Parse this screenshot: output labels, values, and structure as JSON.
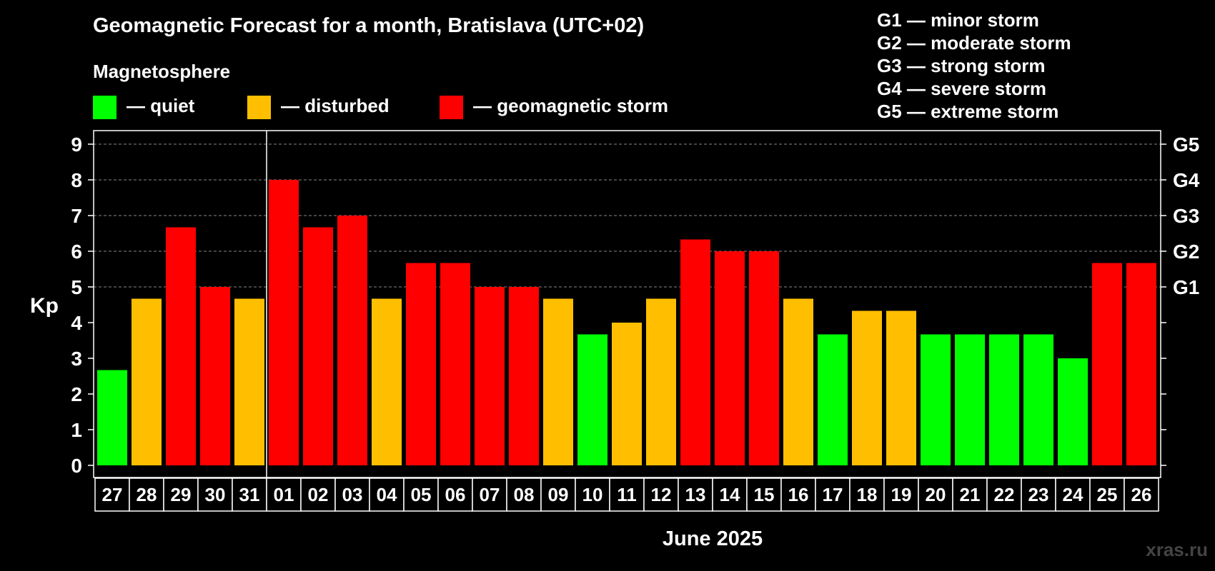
{
  "title": "Geomagnetic Forecast for a month, Bratislava (UTC+02)",
  "legend": {
    "heading": "Magnetosphere",
    "items": [
      {
        "label": "— quiet",
        "color": "#00ff00"
      },
      {
        "label": "— disturbed",
        "color": "#ffbf00"
      },
      {
        "label": "— geomagnetic storm",
        "color": "#ff0000"
      }
    ]
  },
  "storm_scale": [
    "G1 — minor storm",
    "G2 — moderate storm",
    "G3 — strong storm",
    "G4 — severe storm",
    "G5 — extreme storm"
  ],
  "watermark": "xras.ru",
  "chart_data": {
    "type": "bar",
    "title": "Geomagnetic Forecast for a month, Bratislava (UTC+02)",
    "xlabel": "June 2025",
    "ylabel": "Kp",
    "ylim": [
      0,
      9
    ],
    "yticks": [
      0,
      1,
      2,
      3,
      4,
      5,
      6,
      7,
      8,
      9
    ],
    "right_ticks": [
      {
        "value": 5,
        "label": "G1"
      },
      {
        "value": 6,
        "label": "G2"
      },
      {
        "value": 7,
        "label": "G3"
      },
      {
        "value": 8,
        "label": "G4"
      },
      {
        "value": 9,
        "label": "G5"
      }
    ],
    "grid": true,
    "month_divider_after": "31",
    "categories": [
      "27",
      "28",
      "29",
      "30",
      "31",
      "01",
      "02",
      "03",
      "04",
      "05",
      "06",
      "07",
      "08",
      "09",
      "10",
      "11",
      "12",
      "13",
      "14",
      "15",
      "16",
      "17",
      "18",
      "19",
      "20",
      "21",
      "22",
      "23",
      "24",
      "25",
      "26"
    ],
    "values": [
      2.67,
      4.67,
      6.67,
      5.0,
      4.67,
      8.0,
      6.67,
      7.0,
      4.67,
      5.67,
      5.67,
      5.0,
      5.0,
      4.67,
      3.67,
      4.0,
      4.67,
      6.33,
      6.0,
      6.0,
      4.67,
      3.67,
      4.33,
      4.33,
      3.67,
      3.67,
      3.67,
      3.67,
      3.0,
      5.67,
      5.67
    ],
    "levels": [
      "quiet",
      "disturbed",
      "storm",
      "storm",
      "disturbed",
      "storm",
      "storm",
      "storm",
      "disturbed",
      "storm",
      "storm",
      "storm",
      "storm",
      "disturbed",
      "quiet",
      "disturbed",
      "disturbed",
      "storm",
      "storm",
      "storm",
      "disturbed",
      "quiet",
      "disturbed",
      "disturbed",
      "quiet",
      "quiet",
      "quiet",
      "quiet",
      "quiet",
      "storm",
      "storm"
    ],
    "level_colors": {
      "quiet": "#00ff00",
      "disturbed": "#ffbf00",
      "storm": "#ff0000"
    }
  }
}
